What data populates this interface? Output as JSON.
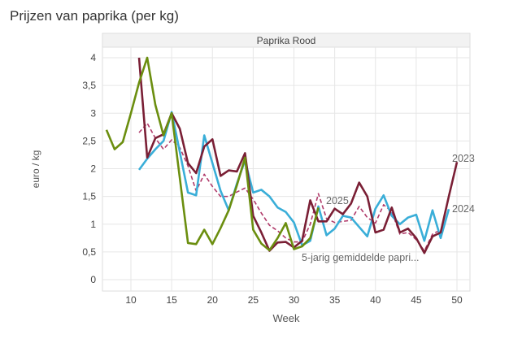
{
  "chart_data": {
    "type": "line",
    "title": "Prijzen van paprika (per kg)",
    "facet": "Paprika Rood",
    "xlabel": "Week",
    "ylabel": "euro / kg",
    "xlim": [
      6,
      51
    ],
    "ylim": [
      -0.2,
      4.2
    ],
    "xticks": [
      10,
      15,
      20,
      25,
      30,
      35,
      40,
      45,
      50
    ],
    "yticks": [
      0,
      0.5,
      1,
      1.5,
      2,
      2.5,
      3,
      3.5,
      4
    ],
    "ytick_labels": [
      "0",
      "0,5",
      "1",
      "1,5",
      "2",
      "2,5",
      "3",
      "3,5",
      "4"
    ],
    "grid": true,
    "series": [
      {
        "name": "2025",
        "color": "#6b8e0f",
        "dashed": false,
        "x": [
          7,
          8,
          9,
          10,
          11,
          12,
          13,
          14,
          15,
          17,
          18,
          19,
          20,
          21,
          22,
          23,
          24,
          25,
          26,
          27,
          28,
          29,
          30,
          31,
          32,
          33
        ],
        "y": [
          2.7,
          2.35,
          2.48,
          3.0,
          3.55,
          4.0,
          3.15,
          2.6,
          3.0,
          0.66,
          0.64,
          0.9,
          0.64,
          0.93,
          1.25,
          1.7,
          2.2,
          0.9,
          0.65,
          0.53,
          0.75,
          1.02,
          0.55,
          0.6,
          0.75,
          1.3
        ]
      },
      {
        "name": "2023",
        "color": "#7a1f35",
        "dashed": false,
        "x": [
          11,
          12,
          13,
          14,
          15,
          16,
          17,
          18,
          19,
          20,
          21,
          22,
          23,
          24,
          25,
          26,
          27,
          28,
          29,
          30,
          31,
          32,
          33,
          34,
          35,
          36,
          37,
          38,
          39,
          40,
          41,
          42,
          43,
          44,
          45,
          46,
          47,
          48,
          49,
          50
        ],
        "y": [
          4.0,
          2.2,
          2.55,
          2.62,
          3.0,
          2.72,
          2.1,
          1.92,
          2.4,
          2.53,
          1.87,
          1.97,
          1.95,
          2.28,
          1.15,
          0.85,
          0.52,
          0.67,
          0.68,
          0.58,
          0.7,
          1.43,
          1.05,
          1.05,
          1.28,
          1.18,
          1.37,
          1.75,
          1.5,
          0.85,
          0.9,
          1.3,
          0.85,
          0.92,
          0.75,
          0.48,
          0.78,
          0.85,
          1.5,
          2.12
        ]
      },
      {
        "name": "2024",
        "color": "#3aaed8",
        "dashed": false,
        "x": [
          11,
          12,
          13,
          14,
          15,
          16,
          17,
          18,
          19,
          20,
          21,
          22,
          23,
          24,
          25,
          26,
          27,
          28,
          29,
          30,
          31,
          32,
          33,
          34,
          35,
          36,
          37,
          38,
          39,
          40,
          41,
          42,
          43,
          44,
          45,
          46,
          47,
          48,
          49
        ],
        "y": [
          1.98,
          2.18,
          2.35,
          2.5,
          3.02,
          2.3,
          1.57,
          1.52,
          2.6,
          2.1,
          1.6,
          1.25,
          1.73,
          2.15,
          1.57,
          1.62,
          1.5,
          1.3,
          1.22,
          1.03,
          0.62,
          0.7,
          1.32,
          0.8,
          0.92,
          1.15,
          1.12,
          0.95,
          0.78,
          1.28,
          1.52,
          1.15,
          1.0,
          1.12,
          1.17,
          0.7,
          1.25,
          0.75,
          1.27
        ]
      },
      {
        "name": "5-jarig gemiddelde papri...",
        "color": "#b03a6a",
        "dashed": true,
        "x": [
          11,
          12,
          13,
          14,
          15,
          16,
          17,
          18,
          19,
          20,
          21,
          22,
          23,
          24,
          25,
          26,
          27,
          28,
          29,
          30,
          31,
          32,
          33,
          34,
          35,
          36,
          37,
          38,
          39,
          40,
          41,
          42,
          43,
          44,
          45,
          46,
          47,
          48
        ],
        "y": [
          2.65,
          2.82,
          2.55,
          2.35,
          2.52,
          2.38,
          2.05,
          1.6,
          1.9,
          1.68,
          1.5,
          1.5,
          1.58,
          1.65,
          1.45,
          1.2,
          0.98,
          0.88,
          0.75,
          0.68,
          0.68,
          1.0,
          1.55,
          1.1,
          1.03,
          1.05,
          1.07,
          1.32,
          1.12,
          1.02,
          1.35,
          1.23,
          0.82,
          0.85,
          0.72,
          0.52,
          0.82,
          0.9
        ]
      }
    ]
  }
}
